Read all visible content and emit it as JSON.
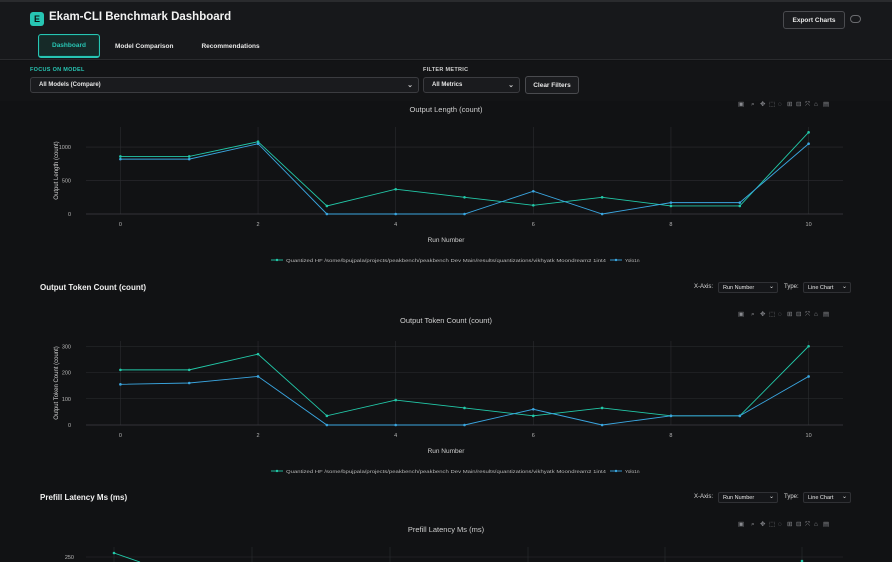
{
  "app": {
    "logo_letter": "E",
    "title": "Ekam-CLI Benchmark Dashboard",
    "export_label": "Export Charts"
  },
  "tabs": [
    {
      "label": "Dashboard",
      "active": true
    },
    {
      "label": "Model Comparison",
      "active": false
    },
    {
      "label": "Recommendations",
      "active": false
    }
  ],
  "filters": {
    "focus_label": "FOCUS ON MODEL",
    "focus_value": "All Models (Compare)",
    "metric_label": "FILTER METRIC",
    "metric_value": "All Metrics",
    "clear_label": "Clear Filters"
  },
  "controls": {
    "x_axis_label": "X-Axis:",
    "x_axis_value": "Run Number",
    "type_label": "Type:",
    "type_value": "Line Chart"
  },
  "colors": {
    "accent": "#27c5b3",
    "series_a": "#22c8a8",
    "series_b": "#3aa6e0",
    "grid": "#2c2d31"
  },
  "toolbar_icons": [
    "camera-icon",
    "zoom-icon",
    "pan-icon",
    "box-select-icon",
    "lasso-icon",
    "zoom-in-icon",
    "zoom-out-icon",
    "autoscale-icon",
    "home-icon",
    "plotly-logo-icon"
  ],
  "chart_data": [
    {
      "type": "line",
      "title": "Output Length (count)",
      "xlabel": "Run Number",
      "ylabel": "Output Length (count)",
      "x": [
        0,
        1,
        2,
        3,
        4,
        5,
        6,
        7,
        8,
        9,
        10
      ],
      "xticks": [
        0,
        2,
        4,
        6,
        8,
        10
      ],
      "yticks": [
        0,
        500,
        1000
      ],
      "ylim": [
        0,
        1300
      ],
      "xlim": [
        -0.5,
        10.5
      ],
      "series": [
        {
          "name": "Quantized HF /some/bpujpala/projects/peakbench/peakbench Dev Main/results/quantizations/vikhyatk Moondream2 1int4",
          "values": [
            860,
            860,
            1080,
            120,
            370,
            250,
            130,
            250,
            120,
            120,
            1220
          ]
        },
        {
          "name": "Yolo1n",
          "values": [
            820,
            820,
            1050,
            0,
            0,
            0,
            340,
            0,
            170,
            170,
            1050
          ]
        }
      ]
    },
    {
      "type": "line",
      "section_title": "Output Token Count (count)",
      "title": "Output Token Count (count)",
      "xlabel": "Run Number",
      "ylabel": "Output Token Count (count)",
      "x": [
        0,
        1,
        2,
        3,
        4,
        5,
        6,
        7,
        8,
        9,
        10
      ],
      "xticks": [
        0,
        2,
        4,
        6,
        8,
        10
      ],
      "yticks": [
        0,
        100,
        200,
        300
      ],
      "ylim": [
        0,
        320
      ],
      "xlim": [
        -0.5,
        10.5
      ],
      "series": [
        {
          "name": "Quantized HF /some/bpujpala/projects/peakbench/peakbench Dev Main/results/quantizations/vikhyatk Moondream2 1int4",
          "values": [
            210,
            210,
            270,
            35,
            95,
            65,
            35,
            65,
            35,
            35,
            300
          ]
        },
        {
          "name": "Yolo1n",
          "values": [
            155,
            160,
            185,
            0,
            0,
            0,
            60,
            0,
            35,
            35,
            185
          ]
        }
      ]
    },
    {
      "type": "line",
      "section_title": "Prefill Latency Ms (ms)",
      "title": "Prefill Latency Ms (ms)",
      "yticks": [
        250
      ],
      "series": [
        {
          "name": "Quantized HF /some/bpujpala/projects/peakbench/peakbench Dev Main/results/quantizations/vikhyatk Moondream2 1int4",
          "values": [
            270
          ]
        }
      ]
    }
  ]
}
